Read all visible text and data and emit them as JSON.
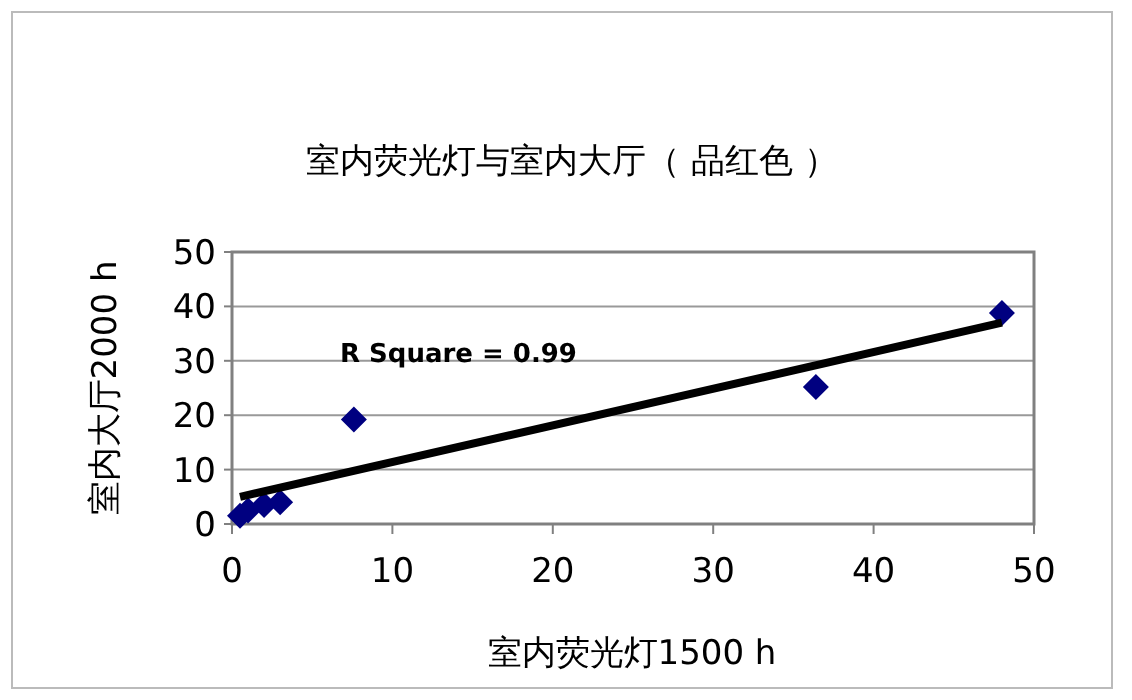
{
  "chart_data": {
    "type": "scatter",
    "title": "室内荧光灯与室内大厅（ 品红色 ）",
    "xlabel": "室内荧光灯1500 h",
    "ylabel": "室内大厅2000 h",
    "series": [
      {
        "color": "#000080",
        "marker": "diamond",
        "x": [
          0.5,
          1,
          2,
          3,
          7.6,
          36.4,
          48
        ],
        "values": [
          1.5,
          2.5,
          3.5,
          4,
          19.2,
          25.2,
          38.8
        ]
      },
      {
        "type": "line",
        "color": "#000000",
        "x": [
          0.5,
          48
        ],
        "values": [
          5,
          37
        ]
      }
    ],
    "annotations": [
      "R Square = 0.99"
    ],
    "xlim": [
      0,
      50
    ],
    "xticks": [
      0,
      10,
      20,
      30,
      40,
      50
    ],
    "ylim": [
      0,
      50
    ],
    "yticks": [
      0,
      10,
      20,
      30,
      40,
      50
    ],
    "grid": "y"
  }
}
